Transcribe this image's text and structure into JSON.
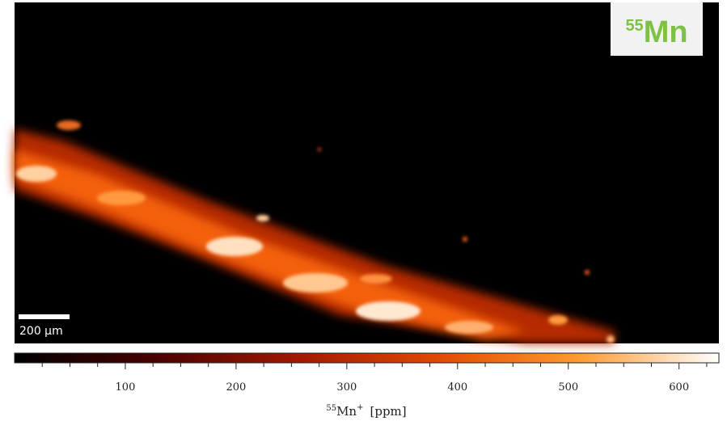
{
  "chart_data": {
    "type": "colormap-image",
    "badge": {
      "mass": "55",
      "element": "Mn"
    },
    "scale_bar": {
      "label": "200 μm"
    },
    "colorbar_label": {
      "mass": "55",
      "ion": "Mn",
      "charge": "+",
      "unit": "[ppm]"
    },
    "clim": [
      0,
      636
    ],
    "cticks": [
      100,
      200,
      300,
      400,
      500,
      600
    ],
    "minor_ticks": [
      25,
      50,
      75,
      125,
      150,
      175,
      225,
      250,
      275,
      325,
      350,
      375,
      425,
      450,
      475,
      525,
      550,
      575,
      625
    ],
    "colormap": [
      "#000000",
      "#4a0000",
      "#a01800",
      "#e04a00",
      "#ff9a30",
      "#ffffff"
    ]
  }
}
